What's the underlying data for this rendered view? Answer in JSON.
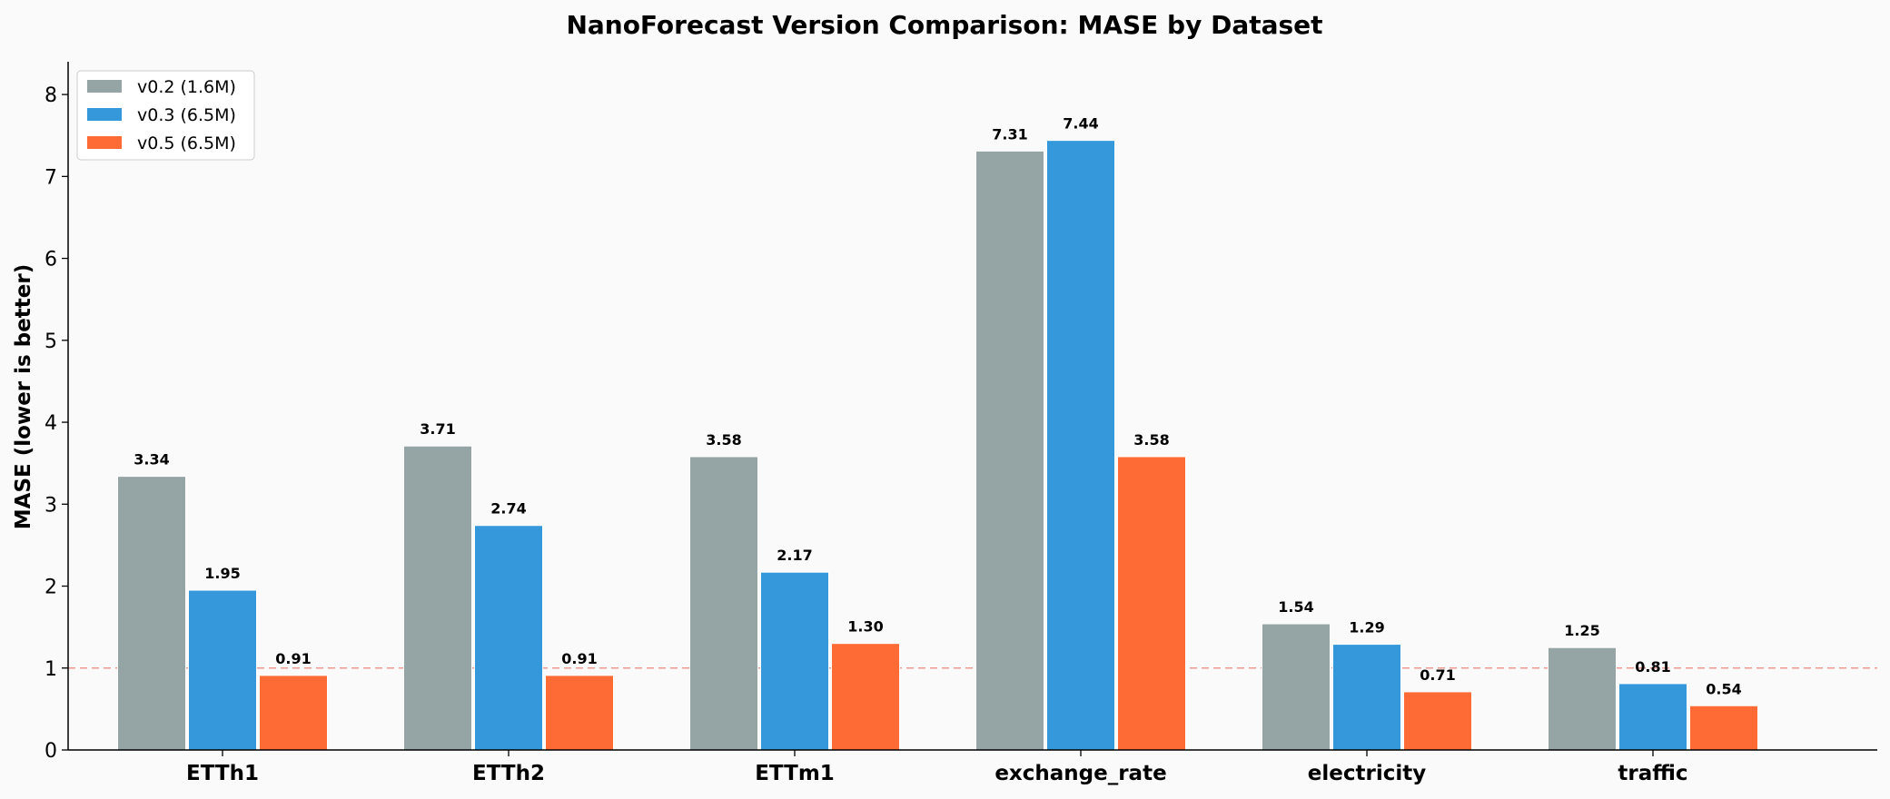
{
  "chart_data": {
    "type": "bar",
    "title": "NanoForecast Version Comparison: MASE by Dataset",
    "xlabel": "",
    "ylabel": "MASE (lower is better)",
    "categories": [
      "ETTh1",
      "ETTh2",
      "ETTm1",
      "exchange_rate",
      "electricity",
      "traffic"
    ],
    "series": [
      {
        "name": "v0.2 (1.6M)",
        "color": "#95a5a6",
        "values": [
          3.34,
          3.71,
          3.58,
          7.31,
          1.54,
          1.25
        ]
      },
      {
        "name": "v0.3 (6.5M)",
        "color": "#3498db",
        "values": [
          1.95,
          2.74,
          2.17,
          7.44,
          1.29,
          0.81
        ]
      },
      {
        "name": "v0.5 (6.5M)",
        "color": "#ff6b35",
        "values": [
          0.91,
          0.91,
          1.3,
          3.58,
          0.71,
          0.54
        ]
      }
    ],
    "value_labels": [
      [
        "3.34",
        "3.71",
        "3.58",
        "7.31",
        "1.54",
        "1.25"
      ],
      [
        "1.95",
        "2.74",
        "2.17",
        "7.44",
        "1.29",
        "0.81"
      ],
      [
        "0.91",
        "0.91",
        "1.30",
        "3.58",
        "0.71",
        "0.54"
      ]
    ],
    "ylim": [
      0,
      8.4
    ],
    "yticks": [
      0,
      1,
      2,
      3,
      4,
      5,
      6,
      7,
      8
    ],
    "reference_line": {
      "y": 1,
      "color": "#e74c3c",
      "style": "dashed"
    },
    "legend_position": "top-left",
    "grid": false
  }
}
